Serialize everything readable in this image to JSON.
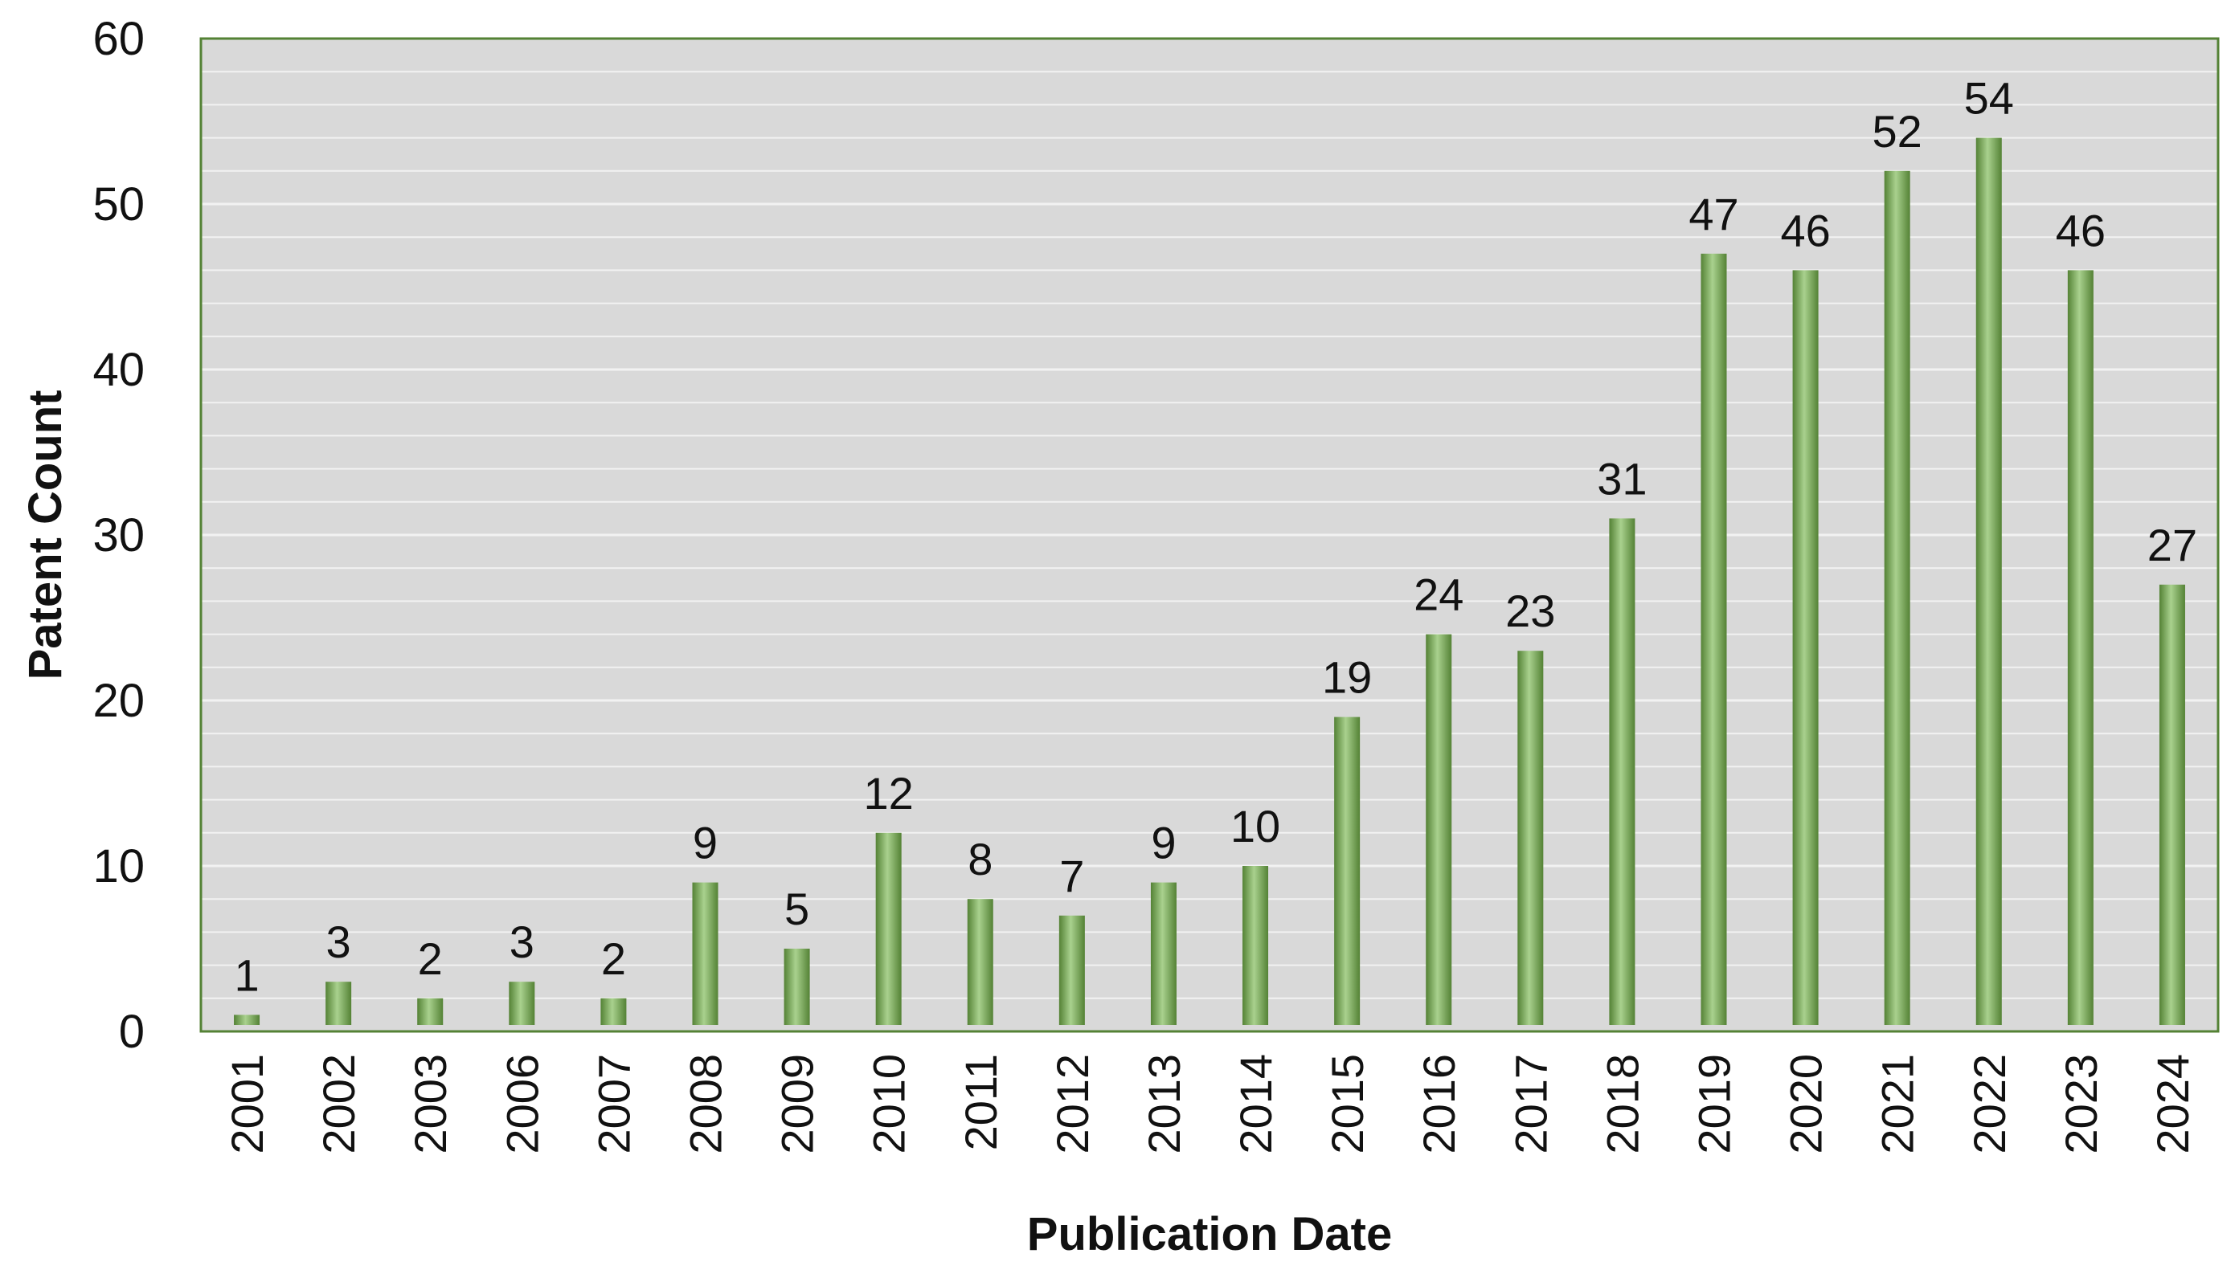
{
  "chart_data": {
    "type": "bar",
    "xlabel": "Publication Date",
    "ylabel": "Patent Count",
    "ylim": [
      0,
      60
    ],
    "yticks": [
      0,
      10,
      20,
      30,
      40,
      50,
      60
    ],
    "grid": true,
    "categories": [
      "2001",
      "2002",
      "2003",
      "2006",
      "2007",
      "2008",
      "2009",
      "2010",
      "2011",
      "2012",
      "2013",
      "2014",
      "2015",
      "2016",
      "2017",
      "2018",
      "2019",
      "2020",
      "2021",
      "2022",
      "2023",
      "2024"
    ],
    "values": [
      1,
      3,
      2,
      3,
      2,
      9,
      5,
      12,
      8,
      7,
      9,
      10,
      19,
      24,
      23,
      31,
      47,
      46,
      52,
      54,
      46,
      27
    ],
    "data_labels": true,
    "colors": {
      "plot_background": "#d9d9d9",
      "plot_border": "#548235",
      "gridline": "#f2f2f2",
      "bar_dark": "#548235",
      "bar_light": "#a9d18e"
    }
  }
}
